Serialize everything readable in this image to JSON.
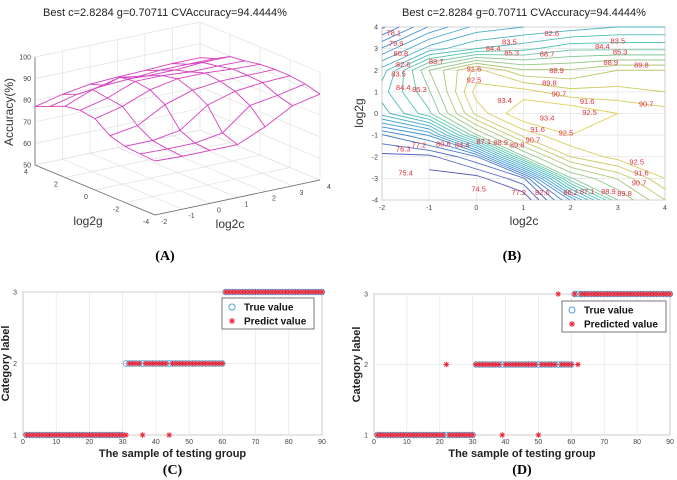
{
  "colors": {
    "mesh": "#d63fc0",
    "true_marker": "#4aa3d8",
    "pred_marker": "#e8283a",
    "contour_label": "#e0303a"
  },
  "chart_data": [
    {
      "id": "A",
      "panel_label": "(A)",
      "type": "surface",
      "title": "Best c=2.8284 g=0.70711 CVAccuracy=94.4444%",
      "xlabel": "log2c",
      "ylabel": "log2g",
      "zlabel": "Accuracy(%)",
      "xlim": [
        -2,
        4
      ],
      "ylim": [
        -4,
        4
      ],
      "zlim": [
        50,
        100
      ],
      "xticks": [
        -2,
        -1,
        0,
        1,
        2,
        3,
        4
      ],
      "yticks": [
        -4,
        -2,
        0,
        2,
        4
      ],
      "zticks": [
        50,
        60,
        70,
        80,
        90,
        100
      ],
      "grid_c": [
        -2,
        -1,
        0,
        1,
        2,
        3,
        4
      ],
      "grid_g": [
        -4,
        -3,
        -2,
        -1,
        0,
        1,
        2,
        3,
        4
      ],
      "accuracy_grid": [
        [
          75,
          74.5,
          74.5,
          74.5,
          80,
          87.1,
          89.8
        ],
        [
          75.4,
          75,
          75,
          77,
          87,
          89,
          91.6
        ],
        [
          76,
          76,
          78,
          87,
          90.7,
          92,
          92.5
        ],
        [
          78,
          80,
          87,
          91,
          92.5,
          92.5,
          92.5
        ],
        [
          83,
          86,
          91,
          93.4,
          93.4,
          92.5,
          92
        ],
        [
          84,
          87,
          92,
          92,
          91,
          91,
          90.7
        ],
        [
          83,
          88,
          91,
          89,
          89,
          89.8,
          89.8
        ],
        [
          80,
          83,
          84.4,
          85,
          86,
          86,
          86
        ],
        [
          77,
          80,
          82,
          82.6,
          83,
          83.5,
          83.5
        ]
      ]
    },
    {
      "id": "B",
      "panel_label": "(B)",
      "type": "contour",
      "title": "Best c=2.8284 g=0.70711 CVAccuracy=94.4444%",
      "xlabel": "log2c",
      "ylabel": "log2g",
      "xlim": [
        -2,
        4
      ],
      "ylim": [
        -4,
        4
      ],
      "xticks": [
        -2,
        -1,
        0,
        1,
        2,
        3,
        4
      ],
      "yticks": [
        -4,
        -3,
        -2,
        -1,
        0,
        1,
        2,
        3,
        4
      ],
      "levels_start": 74.5,
      "levels_step": 0.9,
      "levels_end": 94.0,
      "contour_labels": [
        {
          "v": "78.1",
          "c": -1.75,
          "g": 3.85
        },
        {
          "v": "79.9",
          "c": -1.7,
          "g": 3.6
        },
        {
          "v": "80.8",
          "c": -1.6,
          "g": 3.0
        },
        {
          "v": "82.6",
          "c": -1.55,
          "g": 2.6
        },
        {
          "v": "83.5",
          "c": -1.65,
          "g": 2.1
        },
        {
          "v": "84.4",
          "c": -1.55,
          "g": 1.2
        },
        {
          "v": "85.3",
          "c": -1.25,
          "g": 1.1
        },
        {
          "v": "88.7",
          "c": -0.85,
          "g": 2.4
        },
        {
          "v": "91.6",
          "c": -0.05,
          "g": 2.05
        },
        {
          "v": "92.5",
          "c": -0.05,
          "g": 1.6
        },
        {
          "v": "83.5",
          "c": 0.7,
          "g": 3.3
        },
        {
          "v": "84.4",
          "c": 0.4,
          "g": 3.0
        },
        {
          "v": "85.3",
          "c": 0.75,
          "g": 2.8
        },
        {
          "v": "82.6",
          "c": 1.6,
          "g": 3.7
        },
        {
          "v": "88.7",
          "c": 1.5,
          "g": 2.75
        },
        {
          "v": "88.9",
          "c": 1.7,
          "g": 2.0
        },
        {
          "v": "89.8",
          "c": 1.55,
          "g": 1.4
        },
        {
          "v": "90.7",
          "c": 1.75,
          "g": 1.0
        },
        {
          "v": "83.5",
          "c": 3.0,
          "g": 3.35
        },
        {
          "v": "84.4",
          "c": 2.8,
          "g": 3.1
        },
        {
          "v": "85.3",
          "c": 3.05,
          "g": 2.9
        },
        {
          "v": "88.9",
          "c": 2.85,
          "g": 2.5
        },
        {
          "v": "89.8",
          "c": 3.5,
          "g": 2.25
        },
        {
          "v": "93.4",
          "c": 0.6,
          "g": 0.6
        },
        {
          "v": "91.6",
          "c": 2.35,
          "g": 0.55
        },
        {
          "v": "92.5",
          "c": 2.4,
          "g": 0.1
        },
        {
          "v": "90.7",
          "c": 3.6,
          "g": 0.45
        },
        {
          "v": "93.4",
          "c": 1.5,
          "g": -0.2
        },
        {
          "v": "91.6",
          "c": 1.3,
          "g": -0.75
        },
        {
          "v": "92.5",
          "c": 1.9,
          "g": -0.9
        },
        {
          "v": "90.7",
          "c": 1.2,
          "g": -1.05
        },
        {
          "v": "89.8",
          "c": 0.95,
          "g": -1.45
        },
        {
          "v": "88.9",
          "c": 0.6,
          "g": -1.35
        },
        {
          "v": "87.1",
          "c": 0.2,
          "g": -1.3
        },
        {
          "v": "76.3",
          "c": -1.55,
          "g": -1.65
        },
        {
          "v": "77.2",
          "c": -1.3,
          "g": -1.45
        },
        {
          "v": "80.8",
          "c": -0.7,
          "g": -1.4
        },
        {
          "v": "84.4",
          "c": -0.3,
          "g": -1.45
        },
        {
          "v": "75.4",
          "c": -1.5,
          "g": -2.75
        },
        {
          "v": "74.5",
          "c": 0.05,
          "g": -3.5
        },
        {
          "v": "77.2",
          "c": 0.9,
          "g": -3.65
        },
        {
          "v": "82.6",
          "c": 1.4,
          "g": -3.65
        },
        {
          "v": "86.2",
          "c": 2.0,
          "g": -3.65
        },
        {
          "v": "87.1",
          "c": 2.35,
          "g": -3.6
        },
        {
          "v": "88.9",
          "c": 2.8,
          "g": -3.6
        },
        {
          "v": "89.8",
          "c": 3.1,
          "g": -3.75
        },
        {
          "v": "92.5",
          "c": 3.4,
          "g": -2.25
        },
        {
          "v": "91.6",
          "c": 3.5,
          "g": -2.65
        },
        {
          "v": "90.7",
          "c": 3.45,
          "g": -2.9
        }
      ]
    },
    {
      "id": "C",
      "panel_label": "(C)",
      "type": "scatter",
      "xlabel": "The sample of testing group",
      "ylabel": "Category label",
      "xlim": [
        0,
        90
      ],
      "ylim": [
        1,
        3
      ],
      "xticks": [
        0,
        10,
        20,
        30,
        40,
        50,
        60,
        70,
        80,
        90
      ],
      "yticks": [
        1,
        2,
        3
      ],
      "legend": {
        "position": "top-right",
        "entries": [
          "True value",
          "Predict value"
        ]
      },
      "n_samples": 90,
      "true_ranges": [
        {
          "from": 1,
          "to": 30,
          "label": 1
        },
        {
          "from": 31,
          "to": 60,
          "label": 2
        },
        {
          "from": 61,
          "to": 90,
          "label": 3
        }
      ],
      "misclassified": [
        {
          "sample": 31,
          "predicted": 1
        },
        {
          "sample": 36,
          "predicted": 1
        },
        {
          "sample": 44,
          "predicted": 1
        }
      ]
    },
    {
      "id": "D",
      "panel_label": "(D)",
      "type": "scatter",
      "xlabel": "The sample of testing group",
      "ylabel": "Category label",
      "xlim": [
        0,
        90
      ],
      "ylim": [
        1,
        3
      ],
      "xticks": [
        0,
        10,
        20,
        30,
        40,
        50,
        60,
        70,
        80,
        90
      ],
      "yticks": [
        1,
        2,
        3
      ],
      "legend": {
        "position": "top-right",
        "entries": [
          "True value",
          "Predicted value"
        ]
      },
      "n_samples": 90,
      "true_ranges": [
        {
          "from": 1,
          "to": 30,
          "label": 1
        },
        {
          "from": 31,
          "to": 60,
          "label": 2
        },
        {
          "from": 61,
          "to": 90,
          "label": 3
        }
      ],
      "misclassified": [
        {
          "sample": 22,
          "predicted": 2
        },
        {
          "sample": 39,
          "predicted": 1
        },
        {
          "sample": 50,
          "predicted": 1
        },
        {
          "sample": 56,
          "predicted": 3
        },
        {
          "sample": 62,
          "predicted": 2
        }
      ]
    }
  ]
}
